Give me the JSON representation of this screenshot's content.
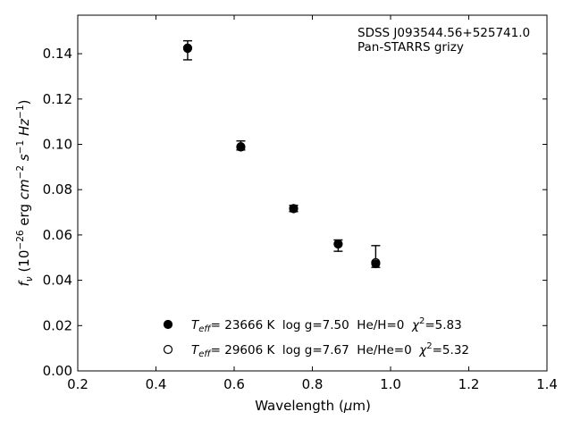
{
  "chart_data": {
    "type": "scatter",
    "title": "",
    "xlabel": "Wavelength (μm)",
    "ylabel": "f_ν (10^-26 erg cm^-2 s^-1 Hz^-1)",
    "xlim": [
      0.2,
      1.4
    ],
    "ylim": [
      0.0,
      0.157
    ],
    "xticks": [
      "0.2",
      "0.4",
      "0.6",
      "0.8",
      "1.0",
      "1.2",
      "1.4"
    ],
    "yticks": [
      "0.00",
      "0.02",
      "0.04",
      "0.06",
      "0.08",
      "0.10",
      "0.12",
      "0.14"
    ],
    "grid": false,
    "annotation": [
      "SDSS J093544.56+525741.0",
      "Pan-STARRS grizy"
    ],
    "observed": {
      "x": [
        0.481,
        0.617,
        0.752,
        0.866,
        0.962
      ],
      "y": [
        0.1415,
        0.0995,
        0.0717,
        0.0553,
        0.0505
      ],
      "yerr": [
        0.0042,
        0.002,
        0.0014,
        0.0025,
        0.0048
      ]
    },
    "series": [
      {
        "name": "T_eff= 23666 K  log g=7.50  He/H=0  χ^2=5.83",
        "marker": "filled-circle",
        "x": [
          0.481,
          0.617,
          0.752,
          0.866,
          0.962
        ],
        "y": [
          0.1423,
          0.099,
          0.0717,
          0.056,
          0.0473
        ]
      },
      {
        "name": "T_eff= 29606 K  log g=7.67  He/He=0  χ^2=5.32",
        "marker": "open-circle",
        "x": [
          0.481,
          0.617,
          0.752,
          0.866,
          0.962
        ],
        "y": [
          0.1425,
          0.0988,
          0.0716,
          0.056,
          0.0478
        ]
      }
    ],
    "legend": {
      "position": "lower-center",
      "entries": [
        {
          "prefix": "T",
          "sub": "eff",
          "middle": "= 23666 K  log g=7.50  He/H=0  ",
          "chi": "χ",
          "sup": "2",
          "tail": "=5.83"
        },
        {
          "prefix": "T",
          "sub": "eff",
          "middle": "= 29606 K  log g=7.67  He/He=0  ",
          "chi": "χ",
          "sup": "2",
          "tail": "=5.32"
        }
      ]
    }
  }
}
